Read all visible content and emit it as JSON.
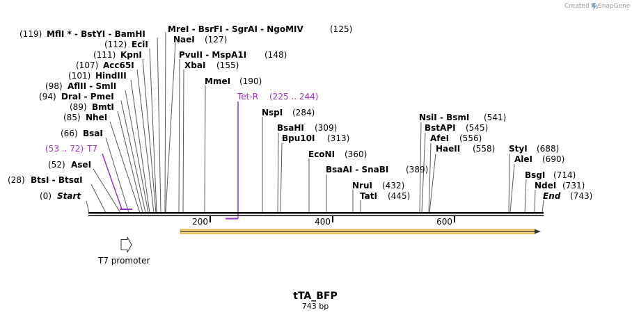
{
  "credit": {
    "text": "Created by",
    "brand": "SnapGene"
  },
  "title": "tTA_BFP",
  "length_label": "743 bp",
  "sequence_length": 743,
  "axis_ticks": [
    {
      "value": 200,
      "label": "200"
    },
    {
      "value": 400,
      "label": "400"
    },
    {
      "value": 600,
      "label": "600"
    }
  ],
  "colors": {
    "feature": "#9b2fd0",
    "orf": "#f0b030",
    "line": "#000000"
  },
  "sites": {
    "start": {
      "pos": "(0)",
      "name": "Start"
    },
    "btsi": {
      "pos": "(28)",
      "name": "BtsI  - BtsαI"
    },
    "asei": {
      "pos": "(52)",
      "name": "AseI"
    },
    "bsai": {
      "pos": "(66)",
      "name": "BsaI"
    },
    "nhei": {
      "pos": "(85)",
      "name": "NheI"
    },
    "bmti": {
      "pos": "(89)",
      "name": "BmtI"
    },
    "drai": {
      "pos": "(94)",
      "name": "DraI  - PmeI"
    },
    "aflii": {
      "pos": "(98)",
      "name": "AflII  - SmlI"
    },
    "hindiii": {
      "pos": "(101)",
      "name": "HindIII"
    },
    "acc65i": {
      "pos": "(107)",
      "name": "Acc65I"
    },
    "kpni": {
      "pos": "(111)",
      "name": "KpnI"
    },
    "ecii": {
      "pos": "(112)",
      "name": "EciI"
    },
    "mfli": {
      "pos": "(119)",
      "name": "MflI *  - BstYI  - BamHI"
    },
    "mrei": {
      "pos": "(125)",
      "name": "MreI  - BsrFI  - SgrAI  - NgoMIV"
    },
    "naei": {
      "pos": "(127)",
      "name": "NaeI"
    },
    "pvuii": {
      "pos": "(148)",
      "name": "PvuII  - MspA1I"
    },
    "xbai": {
      "pos": "(155)",
      "name": "XbaI"
    },
    "mmei": {
      "pos": "(190)",
      "name": "MmeI"
    },
    "nspi": {
      "pos": "(284)",
      "name": "NspI"
    },
    "bsahi": {
      "pos": "(309)",
      "name": "BsaHI"
    },
    "bpu10i": {
      "pos": "(313)",
      "name": "Bpu10I"
    },
    "econi": {
      "pos": "(360)",
      "name": "EcoNI"
    },
    "bsaai": {
      "pos": "(389)",
      "name": "BsaAI  - SnaBI"
    },
    "nrui": {
      "pos": "(432)",
      "name": "NruI"
    },
    "tati": {
      "pos": "(445)",
      "name": "TatI"
    },
    "nsii": {
      "pos": "(541)",
      "name": "NsiI  - BsmI"
    },
    "bstapi": {
      "pos": "(545)",
      "name": "BstAPI"
    },
    "afei": {
      "pos": "(556)",
      "name": "AfeI"
    },
    "haeii": {
      "pos": "(558)",
      "name": "HaeII"
    },
    "styi": {
      "pos": "(688)",
      "name": "StyI"
    },
    "alei": {
      "pos": "(690)",
      "name": "AleI"
    },
    "bsgi": {
      "pos": "(714)",
      "name": "BsgI"
    },
    "ndei": {
      "pos": "(731)",
      "name": "NdeI"
    },
    "end": {
      "pos": "(743)",
      "name": "End"
    }
  },
  "features": {
    "t7": {
      "name": "T7",
      "range": "(53 .. 72)",
      "start": 53,
      "end": 72
    },
    "tetr": {
      "name": "Tet-R",
      "range": "(225 .. 244)",
      "start": 225,
      "end": 244
    },
    "t7promoter": {
      "name": "T7 promoter",
      "start": 53,
      "end": 72
    },
    "orf": {
      "start": 150,
      "end": 743
    }
  }
}
